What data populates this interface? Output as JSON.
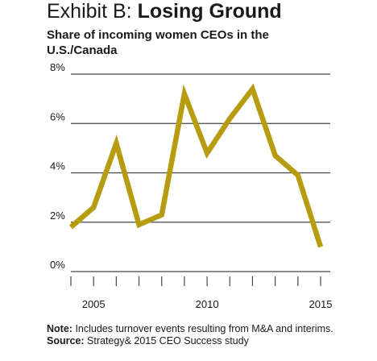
{
  "header": {
    "exhibit": "Exhibit B:",
    "title": "Losing Ground",
    "subtitle": "Share of incoming women CEOs in the U.S./Canada"
  },
  "footer": {
    "note_label": "Note:",
    "note_text": "Includes turnover events resulting from M&A and interims.",
    "source_label": "Source:",
    "source_text": "Strategy& 2015 CEO Success study"
  },
  "colors": {
    "line": "#b89c10",
    "grid": "#444444",
    "text": "#1a1a1a"
  },
  "chart_data": {
    "type": "line",
    "title": "Losing Ground",
    "subtitle": "Share of incoming women CEOs in the U.S./Canada",
    "xlabel": "",
    "ylabel": "",
    "x": [
      2004,
      2005,
      2006,
      2007,
      2008,
      2009,
      2010,
      2011,
      2012,
      2013,
      2014,
      2015
    ],
    "series": [
      {
        "values": [
          1.8,
          2.6,
          5.2,
          1.9,
          2.3,
          7.2,
          4.8,
          6.2,
          7.4,
          4.7,
          3.9,
          1.0
        ]
      }
    ],
    "ylim": [
      0,
      8
    ],
    "xlim": [
      2004,
      2015
    ],
    "yticks": [
      0,
      2,
      4,
      6,
      8
    ],
    "ytick_labels": [
      "0%",
      "2%",
      "4%",
      "6%",
      "8%"
    ],
    "xtick_labels": [
      {
        "x": 2005,
        "label": "2005"
      },
      {
        "x": 2010,
        "label": "2010"
      },
      {
        "x": 2015,
        "label": "2015"
      }
    ],
    "grid": true,
    "legend": "none"
  }
}
